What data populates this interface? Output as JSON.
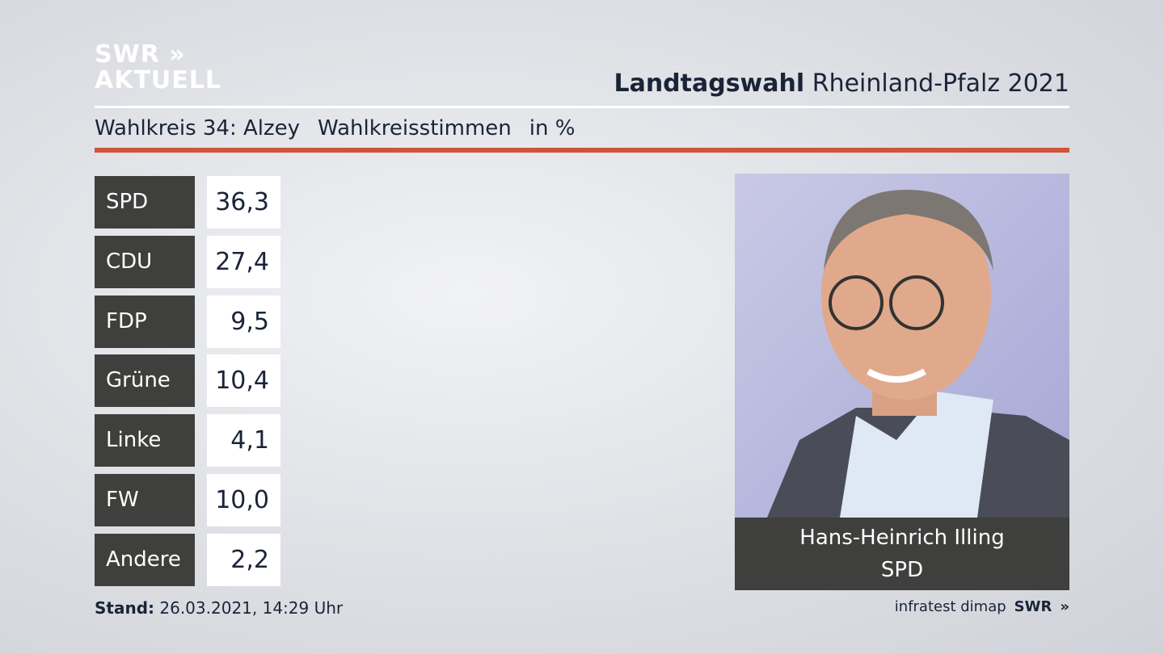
{
  "logo": {
    "line1": "SWR",
    "line2": "AKTUELL"
  },
  "header": {
    "title_bold": "Landtagswahl",
    "title": "Rheinland-Pfalz 2021"
  },
  "subheader": {
    "district": "Wahlkreis 34: Alzey",
    "measure": "Wahlkreisstimmen",
    "unit": "in %"
  },
  "table": {
    "rows": [
      [
        "SPD",
        "36,3"
      ],
      [
        "CDU",
        "27,4"
      ],
      [
        "FDP",
        "9,5"
      ],
      [
        "Grüne",
        "10,4"
      ],
      [
        "Linke",
        "4,1"
      ],
      [
        "FW",
        "10,0"
      ],
      [
        "Andere",
        "2,2"
      ]
    ]
  },
  "candidate": {
    "name": "Hans-Heinrich Illing",
    "party": "SPD"
  },
  "footer": {
    "stand_label": "Stand:",
    "stand": "26.03.2021, 14:29 Uhr",
    "source": "infratest dimap",
    "brand": "SWR"
  }
}
